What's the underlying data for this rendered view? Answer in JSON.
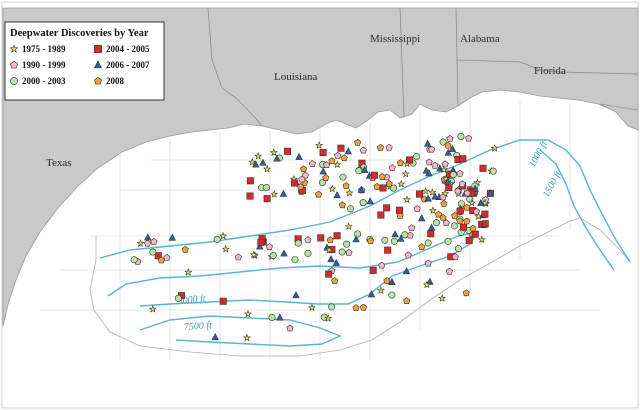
{
  "legend": {
    "title": "Deepwater Discoveries by Year",
    "entries": [
      {
        "label": "1975 - 1989",
        "shape": "star",
        "color": "#e8e24a"
      },
      {
        "label": "2004 - 2005",
        "shape": "square",
        "color": "#d42a2a"
      },
      {
        "label": "1990 - 1999",
        "shape": "pentagon",
        "color": "#f0b8c8"
      },
      {
        "label": "2006 - 2007",
        "shape": "triangle",
        "color": "#2f5fa8"
      },
      {
        "label": "2000 - 2003",
        "shape": "circle",
        "color": "#b9e3a6"
      },
      {
        "label": "2008",
        "shape": "pentagon",
        "color": "#f2a23a"
      }
    ]
  },
  "states": {
    "texas": "Texas",
    "louisiana": "Louisiana",
    "mississippi": "Mississippi",
    "alabama": "Alabama",
    "florida": "Florida"
  },
  "isobaths": {
    "d1000": "1000 ft",
    "d1500": "1500 ft",
    "d5000": "5000 ft",
    "d7500": "7500 ft"
  },
  "colors": {
    "land": "#c9c9c9",
    "water": "#ffffff",
    "isobath": "#58b3d9",
    "grid": "#cfcfcf"
  }
}
